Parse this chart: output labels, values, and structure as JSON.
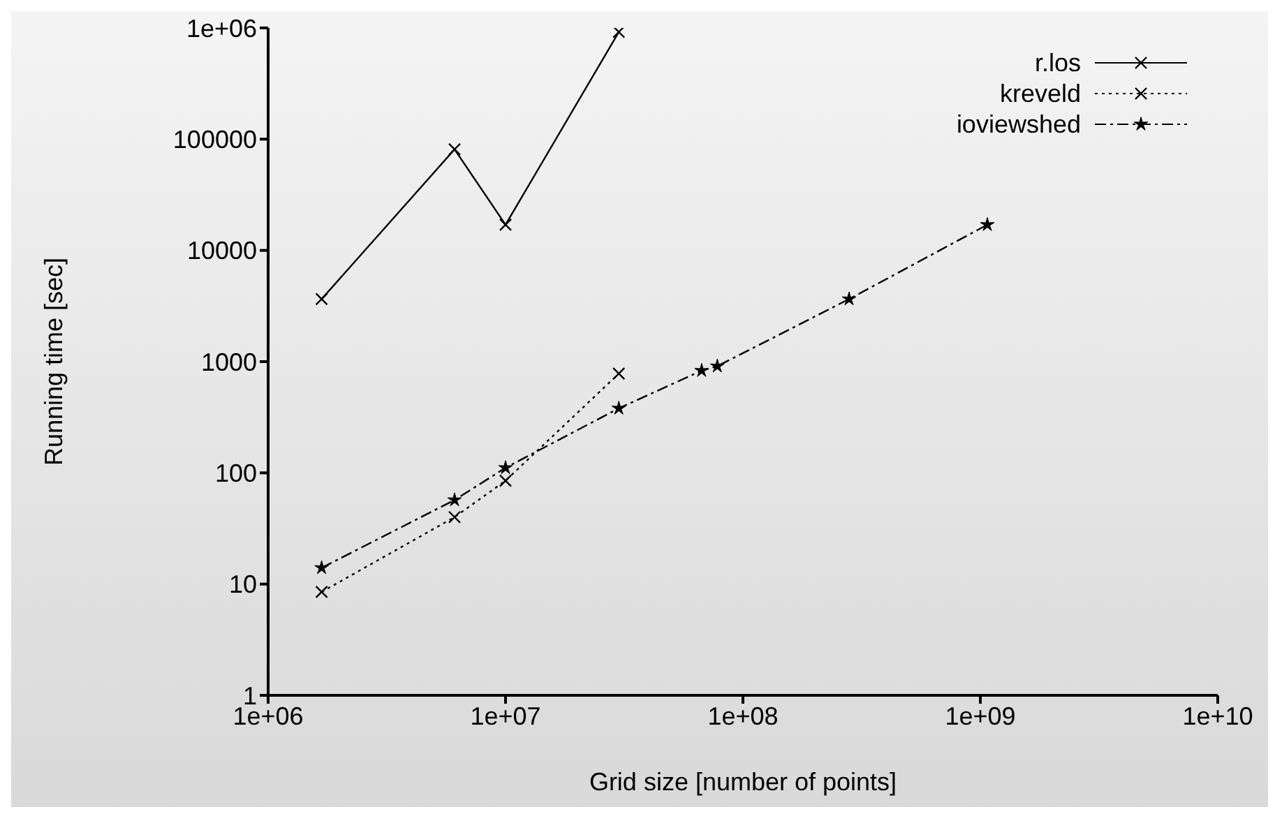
{
  "chart_data": {
    "type": "line",
    "xlabel": "Grid size [number of points]",
    "ylabel": "Running time [sec]",
    "log": "xy",
    "grid": false,
    "legend": "top right",
    "xlim": [
      1000000,
      10000000000
    ],
    "ylim": [
      1,
      1000000
    ],
    "xticks": [
      {
        "value": 1000000,
        "label": "1e+06"
      },
      {
        "value": 10000000,
        "label": "1e+07"
      },
      {
        "value": 100000000,
        "label": "1e+08"
      },
      {
        "value": 1000000000,
        "label": "1e+09"
      },
      {
        "value": 10000000000,
        "label": "1e+10"
      }
    ],
    "yticks": [
      1,
      10,
      100,
      1000,
      10000,
      100000,
      {
        "value": 1000000,
        "label": "1e+06"
      }
    ],
    "series": [
      {
        "name": "r.los",
        "color": "#000000",
        "marker": "cross",
        "line_style": "solid",
        "x": [
          1680000,
          6100000,
          10000000,
          30000000
        ],
        "values": [
          3650,
          81000,
          17000,
          920000
        ]
      },
      {
        "name": "kreveld",
        "color": "#000000",
        "marker": "cross",
        "line_style": "dotted",
        "x": [
          1680000,
          6100000,
          10000000,
          30000000
        ],
        "values": [
          8.5,
          40,
          85,
          780
        ]
      },
      {
        "name": "ioviewshed",
        "color": "#000000",
        "marker": "star",
        "line_style": "dashed",
        "x": [
          1680000,
          6100000,
          10000000,
          30000000,
          67000000,
          78000000,
          280000000,
          1070000000
        ],
        "values": [
          14,
          57,
          111,
          380,
          830,
          910,
          3650,
          17000
        ]
      }
    ]
  }
}
